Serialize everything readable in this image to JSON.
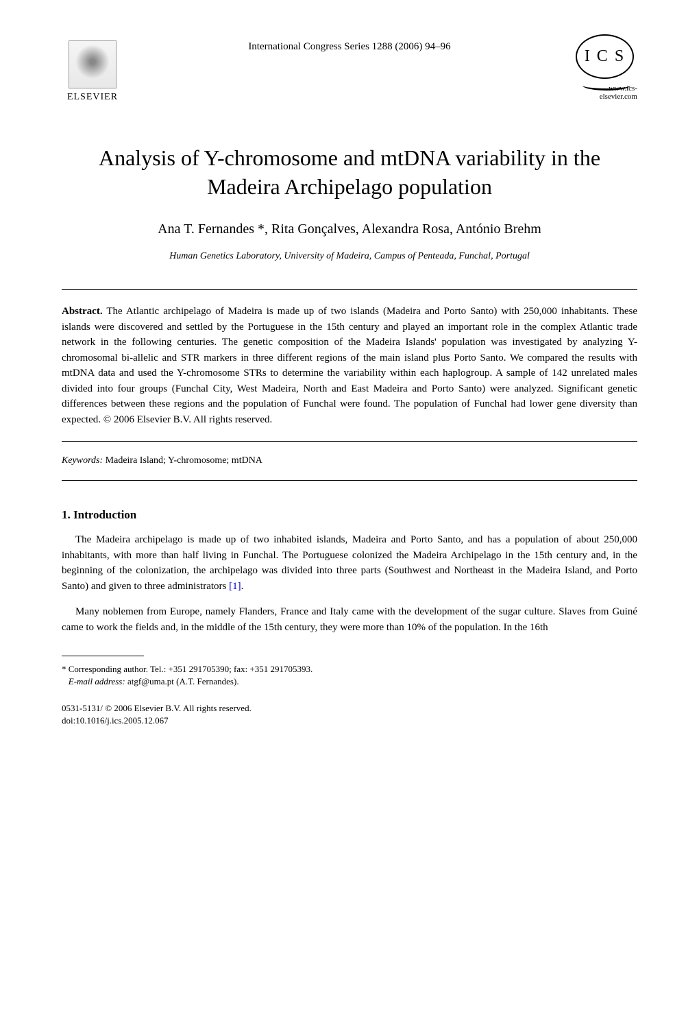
{
  "header": {
    "publisher_name": "ELSEVIER",
    "journal_ref": "International Congress Series 1288 (2006) 94–96",
    "ics_text": "I C S",
    "website": "www.ics-elsevier.com"
  },
  "title": "Analysis of Y-chromosome and mtDNA variability in the Madeira Archipelago population",
  "authors": "Ana T. Fernandes *, Rita Gonçalves, Alexandra Rosa, António Brehm",
  "affiliation": "Human Genetics Laboratory, University of Madeira, Campus of Penteada, Funchal, Portugal",
  "abstract": {
    "label": "Abstract.",
    "text": " The Atlantic archipelago of Madeira is made up of two islands (Madeira and Porto Santo) with 250,000 inhabitants. These islands were discovered and settled by the Portuguese in the 15th century and played an important role in the complex Atlantic trade network in the following centuries. The genetic composition of the Madeira Islands' population was investigated by analyzing Y-chromosomal bi-allelic and STR markers in three different regions of the main island plus Porto Santo. We compared the results with mtDNA data and used the Y-chromosome STRs to determine the variability within each haplogroup. A sample of 142 unrelated males divided into four groups (Funchal City, West Madeira, North and East Madeira and Porto Santo) were analyzed. Significant genetic differences between these regions and the population of Funchal were found. The population of Funchal had lower gene diversity than expected. © 2006 Elsevier B.V. All rights reserved."
  },
  "keywords": {
    "label": "Keywords:",
    "text": " Madeira Island; Y-chromosome; mtDNA"
  },
  "section1": {
    "heading": "1. Introduction",
    "para1_pre": "The Madeira archipelago is made up of two inhabited islands, Madeira and Porto Santo, and has a population of about 250,000 inhabitants, with more than half living in Funchal. The Portuguese colonized the Madeira Archipelago in the 15th century and, in the beginning of the colonization, the archipelago was divided into three parts (Southwest and Northeast in the Madeira Island, and Porto Santo) and given to three administrators ",
    "para1_ref": "[1]",
    "para1_post": ".",
    "para2": "Many noblemen from Europe, namely Flanders, France and Italy came with the development of the sugar culture. Slaves from Guiné came to work the fields and, in the middle of the 15th century, they were more than 10% of the population. In the 16th"
  },
  "footer": {
    "corresponding_marker": "* ",
    "corresponding_text": "Corresponding author. Tel.: +351 291705390; fax: +351 291705393.",
    "email_label": "E-mail address:",
    "email_text": " atgf@uma.pt (A.T. Fernandes).",
    "issn": "0531-5131/ © 2006 Elsevier B.V. All rights reserved.",
    "doi": "doi:10.1016/j.ics.2005.12.067"
  },
  "styling": {
    "page_bg": "#ffffff",
    "text_color": "#000000",
    "link_color": "#0000cc",
    "title_fontsize": 32,
    "authors_fontsize": 20,
    "body_fontsize": 15,
    "font_family": "Times New Roman"
  }
}
